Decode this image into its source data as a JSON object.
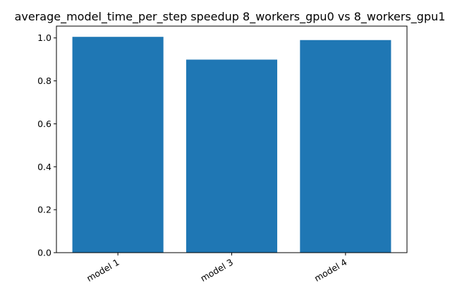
{
  "chart_data": {
    "type": "bar",
    "title": "average_model_time_per_step speedup 8_workers_gpu0 vs 8_workers_gpu1",
    "xlabel": "",
    "ylabel": "",
    "categories": [
      "model 1",
      "model 3",
      "model 4"
    ],
    "values": [
      1.005,
      0.899,
      0.99
    ],
    "ylim": [
      0,
      1.055
    ],
    "yticks": [
      0.0,
      0.2,
      0.4,
      0.6,
      0.8,
      1.0
    ],
    "ytick_labels": [
      "0.0",
      "0.2",
      "0.4",
      "0.6",
      "0.8",
      "1.0"
    ],
    "bar_color": "#1f77b4",
    "grid": false,
    "legend": "none"
  }
}
